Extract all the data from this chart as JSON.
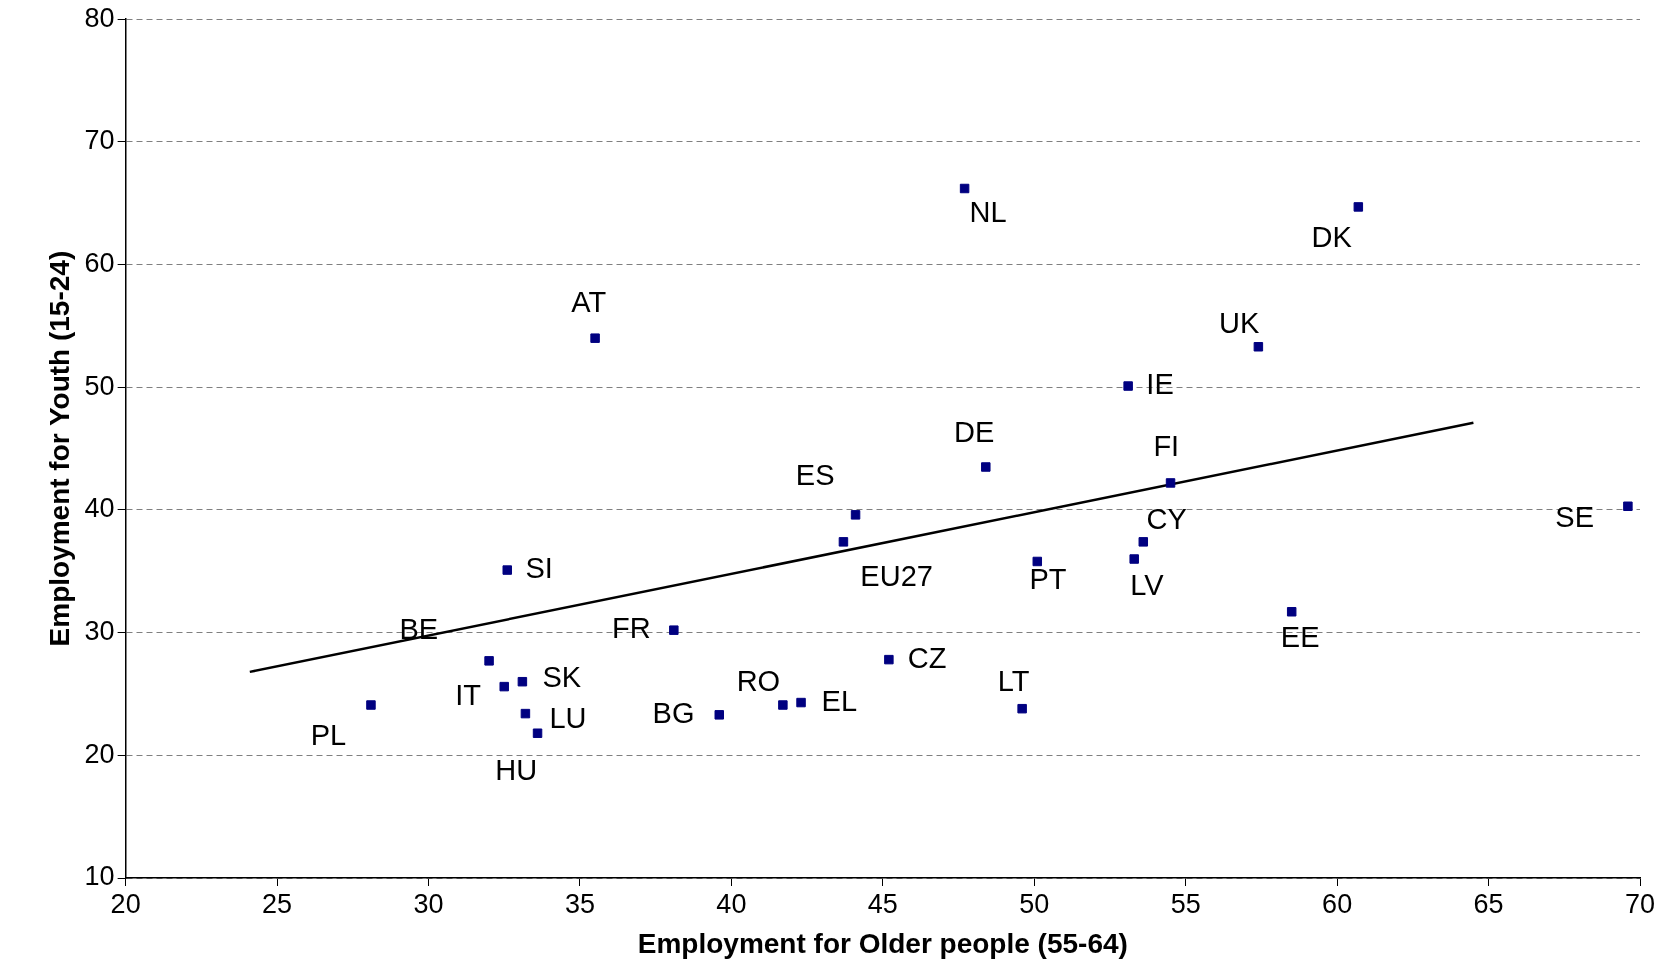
{
  "chart_data": {
    "type": "scatter",
    "xlabel": "Employment for Older people (55-64)",
    "ylabel": "Employment for Youth (15-24)",
    "xlim": [
      20,
      70
    ],
    "xticks": [
      20,
      25,
      30,
      35,
      40,
      45,
      50,
      55,
      60,
      65,
      70
    ],
    "ylim": [
      10,
      80
    ],
    "yticks": [
      10,
      20,
      30,
      40,
      50,
      60,
      70,
      80
    ],
    "grid": "y",
    "legend": false,
    "series": [
      {
        "marker": "square",
        "color": "#000080",
        "x": [
          47.7,
          60.7,
          35.5,
          57.4,
          53.1,
          48.4,
          54.5,
          44.1,
          69.6,
          43.7,
          53.6,
          50.1,
          53.3,
          32.6,
          58.5,
          38.1,
          45.2,
          32.0,
          33.1,
          32.5,
          41.7,
          42.3,
          28.1,
          49.6,
          33.2,
          39.6,
          33.6
        ],
        "values": [
          66.2,
          64.7,
          54.0,
          53.3,
          50.1,
          43.5,
          42.2,
          39.6,
          40.3,
          37.4,
          37.4,
          35.8,
          36.0,
          35.1,
          31.7,
          30.2,
          27.8,
          27.7,
          26.0,
          25.6,
          24.1,
          24.3,
          24.1,
          23.8,
          23.4,
          23.3,
          21.8
        ]
      },
      {
        "type": "line",
        "color": "#000000",
        "x": [
          24.1,
          64.5
        ],
        "values": [
          26.8,
          47.1
        ]
      }
    ],
    "annotations": [
      {
        "text": "NL",
        "x": 47.7,
        "y": 66.2
      },
      {
        "text": "DK",
        "x": 60.7,
        "y": 64.7
      },
      {
        "text": "AT",
        "x": 35.5,
        "y": 54.0
      },
      {
        "text": "UK",
        "x": 57.4,
        "y": 53.3
      },
      {
        "text": "IE",
        "x": 53.1,
        "y": 50.1
      },
      {
        "text": "DE",
        "x": 48.4,
        "y": 43.5
      },
      {
        "text": "FI",
        "x": 54.5,
        "y": 42.2
      },
      {
        "text": "ES",
        "x": 44.1,
        "y": 39.6
      },
      {
        "text": "SE",
        "x": 69.6,
        "y": 40.3
      },
      {
        "text": "EU27",
        "x": 43.7,
        "y": 37.4
      },
      {
        "text": "CY",
        "x": 53.6,
        "y": 37.4
      },
      {
        "text": "PT",
        "x": 50.1,
        "y": 35.8
      },
      {
        "text": "LV",
        "x": 53.3,
        "y": 36.0
      },
      {
        "text": "SI",
        "x": 32.6,
        "y": 35.1
      },
      {
        "text": "EE",
        "x": 58.5,
        "y": 31.7
      },
      {
        "text": "FR",
        "x": 38.1,
        "y": 30.2
      },
      {
        "text": "CZ",
        "x": 45.2,
        "y": 27.8
      },
      {
        "text": "BE",
        "x": 32.0,
        "y": 27.7
      },
      {
        "text": "SK",
        "x": 33.1,
        "y": 26.0
      },
      {
        "text": "IT",
        "x": 32.5,
        "y": 25.6
      },
      {
        "text": "RO",
        "x": 41.7,
        "y": 24.1
      },
      {
        "text": "EL",
        "x": 42.3,
        "y": 24.3
      },
      {
        "text": "PL",
        "x": 28.1,
        "y": 24.1
      },
      {
        "text": "LT",
        "x": 49.6,
        "y": 23.8
      },
      {
        "text": "LU",
        "x": 33.2,
        "y": 23.4
      },
      {
        "text": "BG",
        "x": 39.6,
        "y": 23.3
      },
      {
        "text": "HU",
        "x": 33.6,
        "y": 21.8
      }
    ]
  }
}
